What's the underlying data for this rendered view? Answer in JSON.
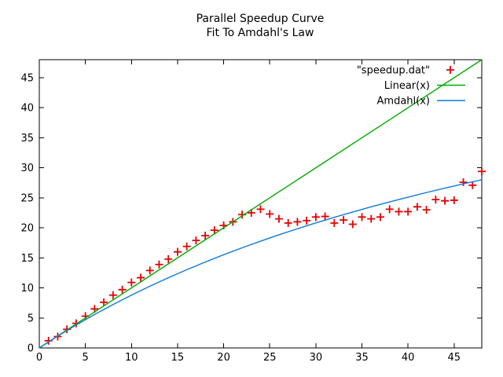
{
  "page": {
    "background": "#ffffff"
  },
  "chart_data": {
    "type": "scatter",
    "title": "Parallel Speedup Curve",
    "subtitle": "Fit To Amdahl's Law",
    "xlabel": "",
    "ylabel": "",
    "xlim": [
      0,
      48
    ],
    "ylim": [
      0,
      48
    ],
    "xticks": [
      0,
      5,
      10,
      15,
      20,
      25,
      30,
      35,
      40,
      45
    ],
    "yticks": [
      0,
      5,
      10,
      15,
      20,
      25,
      30,
      35,
      40,
      45
    ],
    "grid": false,
    "axis_color": "#000000",
    "legend": {
      "position": "top-right-inside",
      "border": false
    },
    "series": [
      {
        "name": "\"speedup.dat\"",
        "type": "scatter",
        "marker": "plus",
        "color": "#e60000",
        "x": [
          1,
          2,
          3,
          4,
          5,
          6,
          7,
          8,
          9,
          10,
          11,
          12,
          13,
          14,
          15,
          16,
          17,
          18,
          19,
          20,
          21,
          22,
          23,
          24,
          25,
          26,
          27,
          28,
          29,
          30,
          31,
          32,
          33,
          34,
          35,
          36,
          37,
          38,
          39,
          40,
          41,
          42,
          43,
          44,
          45,
          46,
          47,
          48
        ],
        "y": [
          1.2,
          1.9,
          3.1,
          4.1,
          5.3,
          6.5,
          7.6,
          8.8,
          9.7,
          10.9,
          11.7,
          12.9,
          13.9,
          14.8,
          16.0,
          16.9,
          17.9,
          18.7,
          19.6,
          20.4,
          21.0,
          22.2,
          22.5,
          23.1,
          22.3,
          21.5,
          20.8,
          21.0,
          21.2,
          21.8,
          21.9,
          20.8,
          21.3,
          20.6,
          21.8,
          21.5,
          21.8,
          23.1,
          22.7,
          22.7,
          23.5,
          23.0,
          24.7,
          24.5,
          24.6,
          27.6,
          27.1,
          29.4
        ]
      },
      {
        "name": "Linear(x)",
        "type": "line",
        "color": "#00aa00",
        "x": [
          0,
          48
        ],
        "y": [
          0,
          48
        ]
      },
      {
        "name": "Amdahl(x)",
        "type": "line",
        "color": "#0f7ad7",
        "x": [
          0,
          2,
          4,
          6,
          8,
          10,
          12,
          14,
          16,
          18,
          20,
          22,
          24,
          26,
          28,
          30,
          32,
          34,
          36,
          38,
          40,
          42,
          44,
          46,
          48
        ],
        "y": [
          0,
          1.97,
          3.83,
          5.58,
          7.23,
          8.8,
          10.28,
          11.69,
          13.03,
          14.3,
          15.52,
          16.68,
          17.78,
          18.84,
          19.85,
          20.82,
          21.75,
          22.64,
          23.5,
          24.32,
          25.11,
          25.88,
          26.61,
          27.32,
          28.0
        ]
      }
    ]
  }
}
